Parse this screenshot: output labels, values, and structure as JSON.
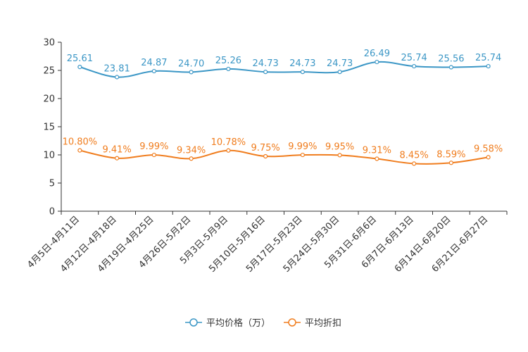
{
  "chart_data": {
    "type": "line",
    "title": "",
    "xlabel": "",
    "ylabel": "",
    "ylim": [
      0,
      30
    ],
    "yticks": [
      0,
      5,
      10,
      15,
      20,
      25,
      30
    ],
    "categories": [
      "4月5日-4月11日",
      "4月12日-4月18日",
      "4月19日-4月25日",
      "4月26日-5月2日",
      "5月3日-5月9日",
      "5月10日-5月16日",
      "5月17日-5月23日",
      "5月24日-5月30日",
      "5月31日-6月6日",
      "6月7日-6月13日",
      "6月14日-6月20日",
      "6月21日-6月27日"
    ],
    "series": [
      {
        "name": "平均价格（万）",
        "color": "#3c97c6",
        "values": [
          25.61,
          23.81,
          24.87,
          24.7,
          25.26,
          24.73,
          24.73,
          24.73,
          26.49,
          25.74,
          25.56,
          25.74
        ],
        "labels": [
          "25.61",
          "23.81",
          "24.87",
          "24.70",
          "25.26",
          "24.73",
          "24.73",
          "24.73",
          "26.49",
          "25.74",
          "25.56",
          "25.74"
        ]
      },
      {
        "name": "平均折扣",
        "color": "#f07d1e",
        "values": [
          10.8,
          9.41,
          9.99,
          9.34,
          10.78,
          9.75,
          9.99,
          9.95,
          9.31,
          8.45,
          8.59,
          9.58
        ],
        "labels": [
          "10.80%",
          "9.41%",
          "9.99%",
          "9.34%",
          "10.78%",
          "9.75%",
          "9.99%",
          "9.95%",
          "9.31%",
          "8.45%",
          "8.59%",
          "9.58%"
        ]
      }
    ],
    "legend_position": "bottom"
  }
}
